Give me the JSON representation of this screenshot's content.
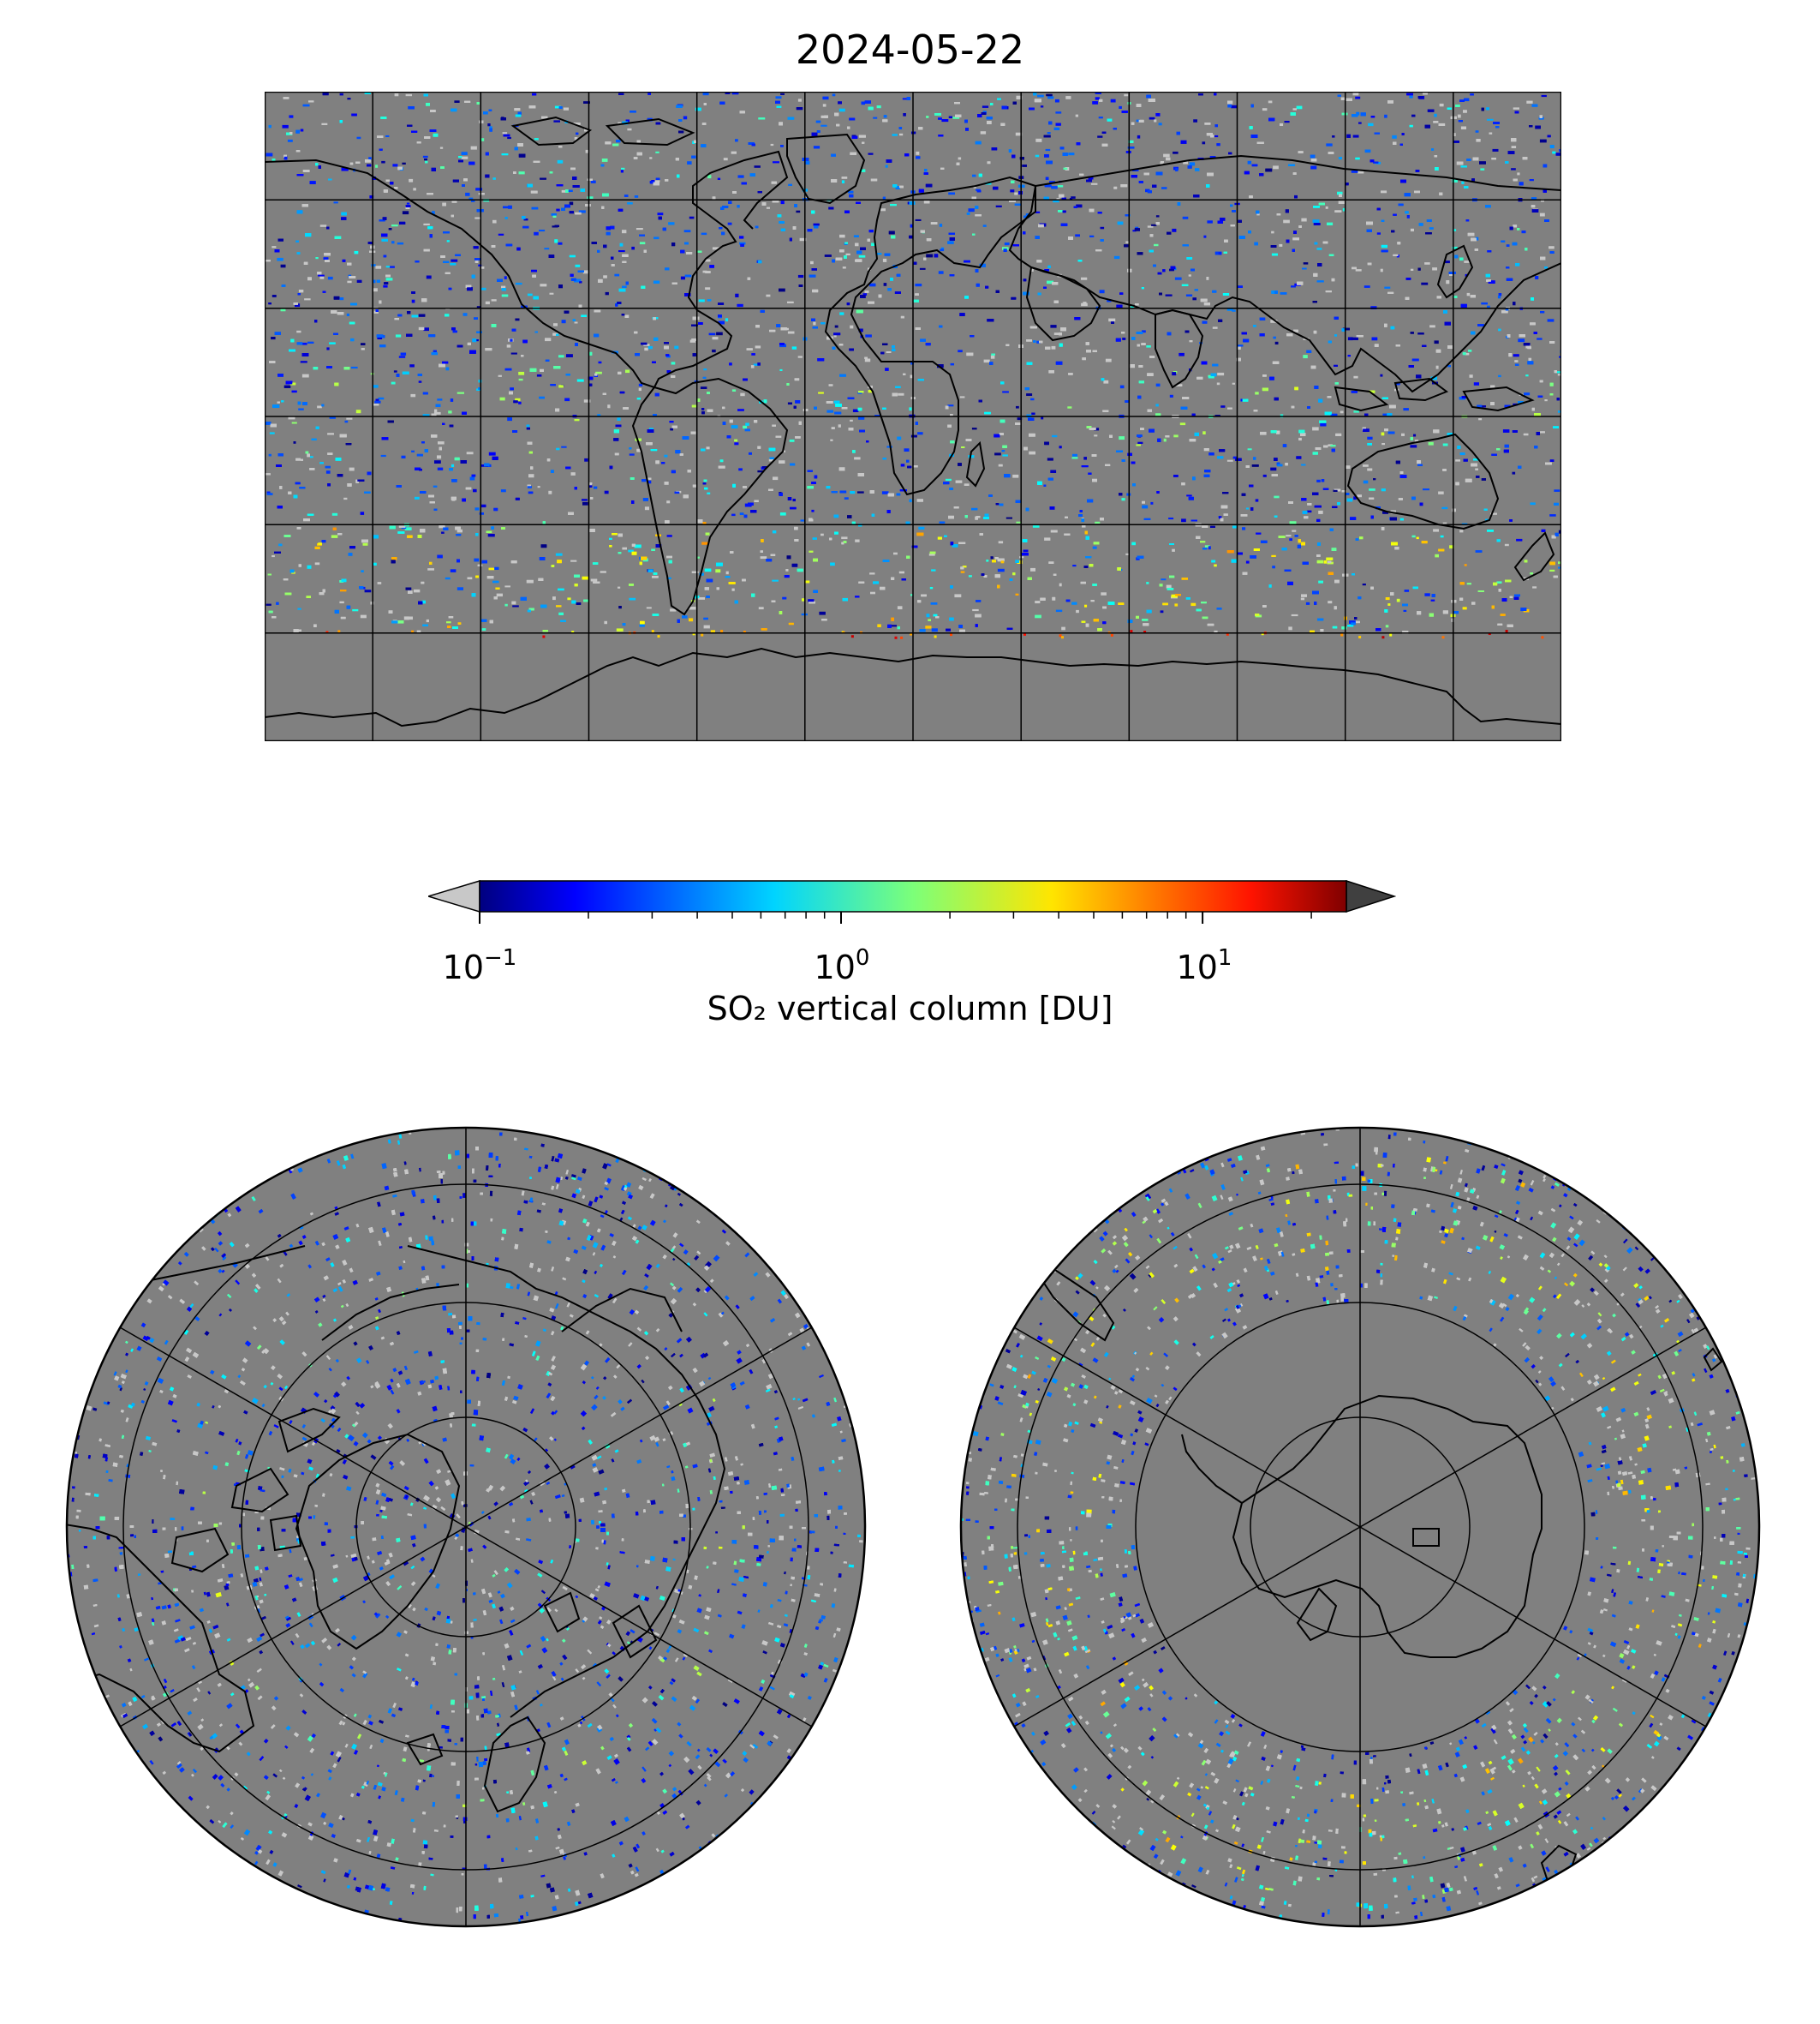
{
  "figure": {
    "title": "2024-05-22",
    "ocean_color": "#808080",
    "coast_color": "#000000"
  },
  "colorbar": {
    "label": "SO₂ vertical column [DU]",
    "ticks": [
      {
        "base": "10",
        "exp": "−1",
        "value": 0.1
      },
      {
        "base": "10",
        "exp": "0",
        "value": 1
      },
      {
        "base": "10",
        "exp": "1",
        "value": 10
      }
    ],
    "scale": "log",
    "range": [
      0.1,
      25
    ],
    "colormap": "jet",
    "under_color": "#c8c8c8",
    "over_color": "#404040",
    "extend": "both"
  },
  "maps": {
    "global": {
      "projection": "plate-carree",
      "gridlines_lon_step": 30,
      "gridlines_lat_step": 30
    },
    "north": {
      "projection": "north-polar-stereo",
      "center": "north-pole"
    },
    "south": {
      "projection": "south-polar-stereo",
      "center": "south-pole"
    }
  }
}
